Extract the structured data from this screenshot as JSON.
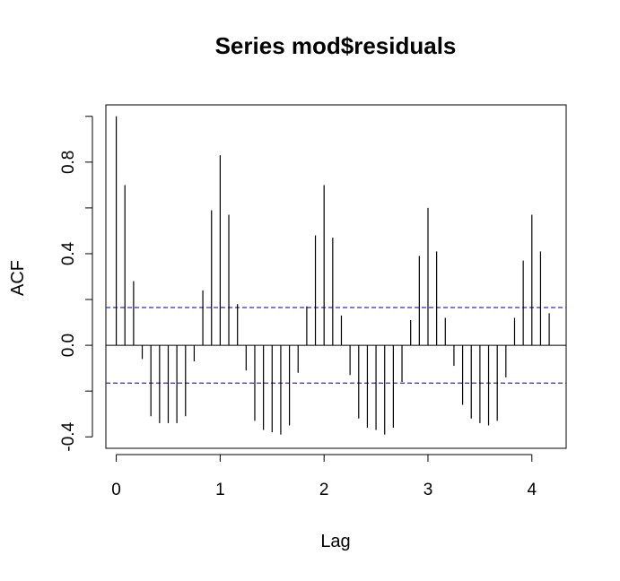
{
  "chart_data": {
    "type": "bar",
    "title": "Series  mod$residuals",
    "xlabel": "Lag",
    "ylabel": "ACF",
    "xlim": [
      -0.1,
      4.33
    ],
    "ylim": [
      -0.45,
      1.05
    ],
    "x_ticks": [
      "0",
      "1",
      "2",
      "3",
      "4"
    ],
    "y_ticks": [
      "-0.4",
      "0.0",
      "0.4",
      "0.8"
    ],
    "lag": [
      0.0,
      0.0833,
      0.1667,
      0.25,
      0.3333,
      0.4167,
      0.5,
      0.5833,
      0.6667,
      0.75,
      0.8333,
      0.9167,
      1.0,
      1.0833,
      1.1667,
      1.25,
      1.3333,
      1.4167,
      1.5,
      1.5833,
      1.6667,
      1.75,
      1.8333,
      1.9167,
      2.0,
      2.0833,
      2.1667,
      2.25,
      2.3333,
      2.4167,
      2.5,
      2.5833,
      2.6667,
      2.75,
      2.8333,
      2.9167,
      3.0,
      3.0833,
      3.1667,
      3.25,
      3.3333,
      3.4167,
      3.5,
      3.5833,
      3.6667,
      3.75,
      3.8333,
      3.9167,
      4.0,
      4.0833,
      4.1667
    ],
    "acf": [
      1.0,
      0.7,
      0.28,
      -0.06,
      -0.31,
      -0.34,
      -0.34,
      -0.34,
      -0.31,
      -0.07,
      0.24,
      0.59,
      0.83,
      0.57,
      0.18,
      -0.11,
      -0.33,
      -0.37,
      -0.38,
      -0.39,
      -0.35,
      -0.12,
      0.17,
      0.48,
      0.7,
      0.47,
      0.13,
      -0.13,
      -0.32,
      -0.36,
      -0.37,
      -0.39,
      -0.36,
      -0.16,
      0.11,
      0.39,
      0.6,
      0.41,
      0.12,
      -0.09,
      -0.26,
      -0.32,
      -0.34,
      -0.35,
      -0.33,
      -0.14,
      0.12,
      0.37,
      0.57,
      0.41,
      0.14
    ],
    "conf_limit": 0.165,
    "conf_line_color": "#2b2bcc",
    "line_color": "#000000",
    "grid": false,
    "legend": "none"
  }
}
